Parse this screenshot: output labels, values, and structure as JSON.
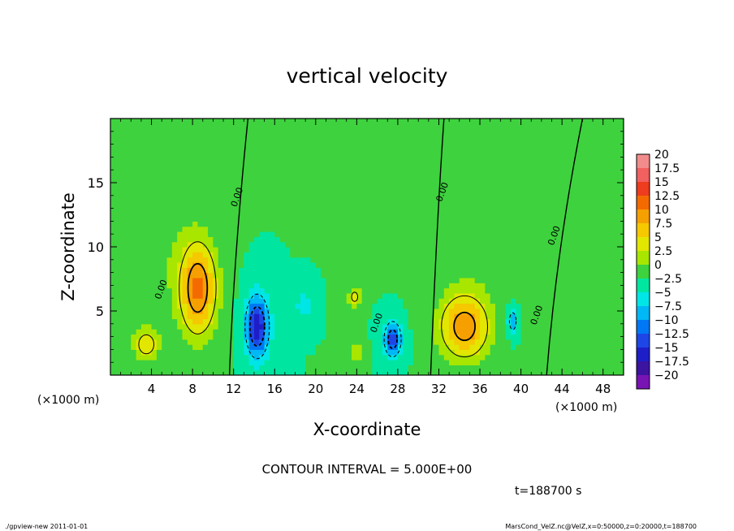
{
  "chart_data": {
    "type": "heatmap",
    "title": "vertical velocity",
    "xlabel": "X-coordinate",
    "ylabel": "Z-coordinate",
    "x_unit": "(×1000 m)",
    "y_unit": "(×1000 m)",
    "xlim": [
      0,
      50
    ],
    "ylim": [
      0,
      20
    ],
    "x_ticks": [
      4,
      8,
      12,
      16,
      20,
      24,
      28,
      32,
      36,
      40,
      44,
      48
    ],
    "y_ticks": [
      5,
      10,
      15
    ],
    "contour_label": "0.00",
    "contour_interval_text": "CONTOUR INTERVAL = 5.000E+00",
    "time_text": "t=188700  s",
    "colorbar": {
      "levels": [
        20,
        17.5,
        15,
        12.5,
        10,
        7.5,
        5,
        2.5,
        0,
        -2.5,
        -5,
        -7.5,
        -10,
        -12.5,
        -15,
        -17.5,
        -20
      ],
      "labels": [
        "20",
        "17.5",
        "15",
        "12.5",
        "10",
        "7.5",
        "5",
        "2.5",
        "0",
        "−2.5",
        "−5",
        "−7.5",
        "−10",
        "−12.5",
        "−15",
        "−17.5",
        "−20"
      ],
      "colors": [
        "#f28c8c",
        "#f26060",
        "#ee3c1e",
        "#f56a00",
        "#f5a000",
        "#f5c800",
        "#e2e600",
        "#a8e600",
        "#3ed23e",
        "#00e6a0",
        "#00e6e6",
        "#00b8f5",
        "#0078f5",
        "#1e46e6",
        "#1e1ec8",
        "#3c14a0",
        "#7814b4"
      ]
    },
    "features": [
      {
        "x": 8.5,
        "z": 6.8,
        "value": 13,
        "sx": 1.3,
        "sz": 2.6
      },
      {
        "x": 34.5,
        "z": 3.8,
        "value": 12,
        "sx": 1.7,
        "sz": 1.8
      },
      {
        "x": 3.5,
        "z": 2.4,
        "value": 7,
        "sx": 0.9,
        "sz": 0.9
      },
      {
        "x": 23.8,
        "z": 6.1,
        "value": 6,
        "sx": 0.5,
        "sz": 0.6
      },
      {
        "x": 24.0,
        "z": 1.7,
        "value": 5,
        "sx": 0.4,
        "sz": 0.6
      },
      {
        "x": 14.3,
        "z": 3.8,
        "value": -15,
        "sx": 0.8,
        "sz": 1.7
      },
      {
        "x": 27.5,
        "z": 2.8,
        "value": -13,
        "sx": 0.6,
        "sz": 1.0
      },
      {
        "x": 39.2,
        "z": 4.2,
        "value": -7,
        "sx": 0.4,
        "sz": 0.8
      },
      {
        "x": 18.8,
        "z": 5.5,
        "value": -5,
        "sx": 0.5,
        "sz": 0.7
      },
      {
        "x": 3.0,
        "z": 10.5,
        "value": 2.5,
        "sx": 3.0,
        "sz": 4.0
      },
      {
        "x": 37.0,
        "z": 12.0,
        "value": 2.5,
        "sx": 3.5,
        "sz": 4.0
      }
    ]
  },
  "footer": {
    "left": "./gpview-new   2011-01-01",
    "right": "MarsCond_VelZ.nc@VelZ,x=0:50000,z=0:20000,t=188700"
  }
}
